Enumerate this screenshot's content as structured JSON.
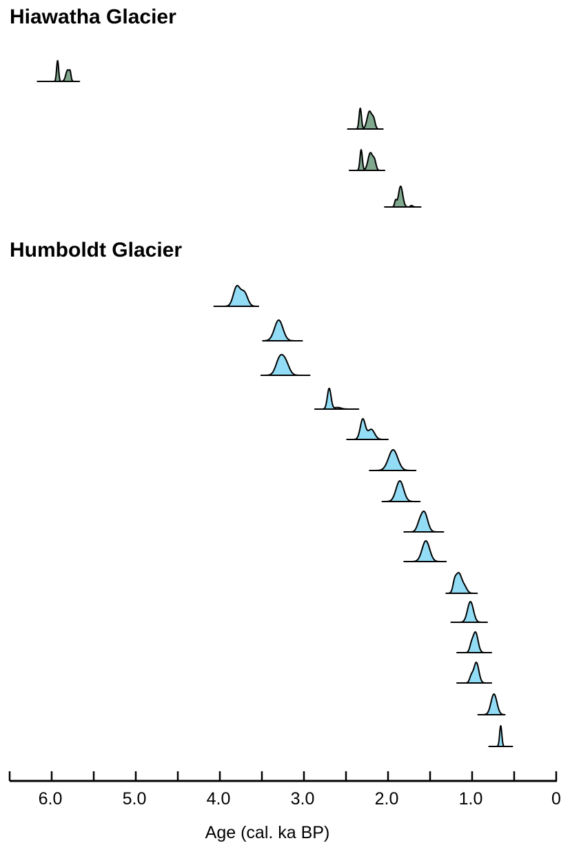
{
  "chart_data": {
    "type": "area",
    "xlabel": "Age (cal. ka BP)",
    "xlim": [
      6.5,
      0
    ],
    "x_reversed": true,
    "xticks": [
      6.0,
      5.0,
      4.0,
      3.0,
      2.0,
      1.0,
      0
    ],
    "xtick_labels": [
      "6.0",
      "5.0",
      "4.0",
      "3.0",
      "2.0",
      "1.0",
      "0"
    ],
    "minor_tick_step": 0.5,
    "grid": false,
    "groups": [
      {
        "title": "Hiawatha Glacier",
        "color": "#7fa88e",
        "samples": [
          {
            "range": [
              6.17,
              5.67
            ],
            "components": [
              [
                5.93,
                0.012,
                1
              ],
              [
                5.81,
                0.022,
                0.55
              ],
              [
                5.78,
                0.01,
                0.3
              ]
            ]
          },
          {
            "range": [
              2.48,
              2.06
            ],
            "components": [
              [
                2.33,
                0.014,
                1
              ],
              [
                2.22,
                0.028,
                0.85
              ],
              [
                2.17,
                0.018,
                0.4
              ]
            ]
          },
          {
            "range": [
              2.46,
              2.04
            ],
            "components": [
              [
                2.32,
                0.014,
                1
              ],
              [
                2.21,
                0.028,
                0.85
              ],
              [
                2.16,
                0.018,
                0.4
              ]
            ]
          },
          {
            "range": [
              2.04,
              1.61
            ],
            "components": [
              [
                1.85,
                0.025,
                1
              ],
              [
                1.91,
                0.012,
                0.3
              ],
              [
                1.72,
                0.015,
                0.07
              ]
            ]
          }
        ]
      },
      {
        "title": "Humboldt Glacier",
        "color": "#93dcf5",
        "samples": [
          {
            "range": [
              4.07,
              3.54
            ],
            "components": [
              [
                3.8,
                0.04,
                1
              ],
              [
                3.71,
                0.04,
                0.7
              ]
            ]
          },
          {
            "range": [
              3.49,
              3.02
            ],
            "components": [
              [
                3.3,
                0.05,
                1
              ]
            ]
          },
          {
            "range": [
              3.51,
              2.93
            ],
            "components": [
              [
                3.29,
                0.045,
                0.9
              ],
              [
                3.22,
                0.045,
                0.7
              ]
            ]
          },
          {
            "range": [
              2.87,
              2.35
            ],
            "components": [
              [
                2.7,
                0.022,
                1
              ],
              [
                2.6,
                0.04,
                0.08
              ]
            ]
          },
          {
            "range": [
              2.49,
              2.0
            ],
            "components": [
              [
                2.3,
                0.03,
                1
              ],
              [
                2.2,
                0.04,
                0.5
              ]
            ]
          },
          {
            "range": [
              2.22,
              1.67
            ],
            "components": [
              [
                1.94,
                0.055,
                1
              ]
            ]
          },
          {
            "range": [
              2.07,
              1.62
            ],
            "components": [
              [
                1.86,
                0.045,
                1
              ]
            ]
          },
          {
            "range": [
              1.81,
              1.34
            ],
            "components": [
              [
                1.57,
                0.04,
                1
              ],
              [
                1.63,
                0.03,
                0.3
              ]
            ]
          },
          {
            "range": [
              1.81,
              1.31
            ],
            "components": [
              [
                1.55,
                0.045,
                1
              ]
            ]
          },
          {
            "range": [
              1.31,
              0.94
            ],
            "components": [
              [
                1.16,
                0.035,
                1
              ],
              [
                1.21,
                0.02,
                0.4
              ],
              [
                1.09,
                0.03,
                0.3
              ]
            ]
          },
          {
            "range": [
              1.25,
              0.82
            ],
            "components": [
              [
                1.02,
                0.035,
                1
              ]
            ]
          },
          {
            "range": [
              1.18,
              0.77
            ],
            "components": [
              [
                0.96,
                0.03,
                1
              ],
              [
                1.01,
                0.02,
                0.3
              ]
            ]
          },
          {
            "range": [
              1.18,
              0.77
            ],
            "components": [
              [
                0.95,
                0.03,
                1
              ],
              [
                1.01,
                0.02,
                0.3
              ]
            ]
          },
          {
            "range": [
              0.93,
              0.61
            ],
            "components": [
              [
                0.74,
                0.035,
                1
              ]
            ]
          },
          {
            "range": [
              0.8,
              0.52
            ],
            "components": [
              [
                0.66,
                0.013,
                1
              ]
            ]
          }
        ]
      }
    ]
  }
}
